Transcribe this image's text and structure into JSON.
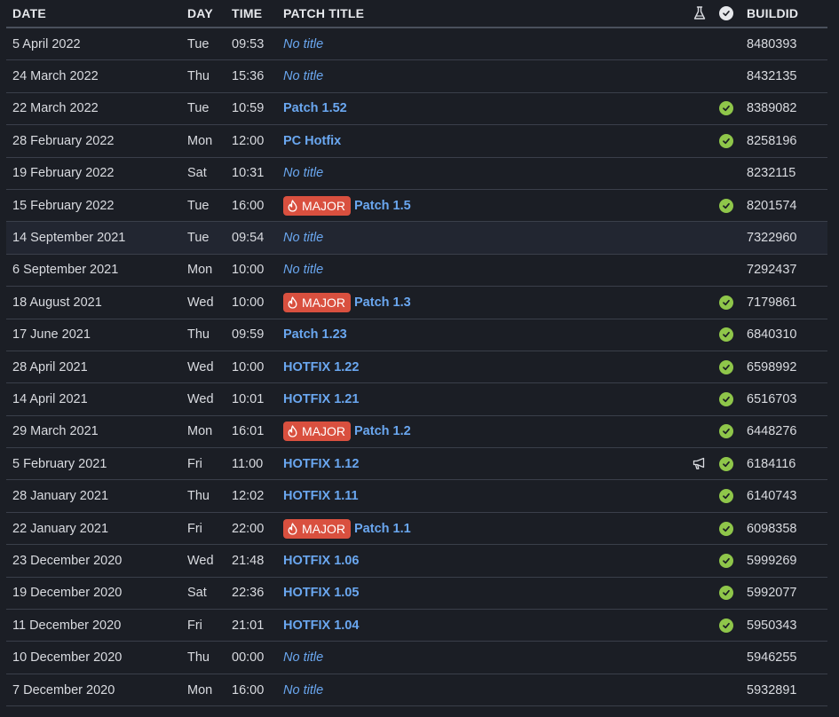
{
  "header": {
    "date": "DATE",
    "day": "DAY",
    "time": "TIME",
    "title": "PATCH TITLE",
    "buildid": "BUILDID"
  },
  "major_label": "MAJOR",
  "colors": {
    "background": "#1b1e25",
    "link": "#6aa7f0",
    "major_badge": "#d9503f",
    "check": "#8fc64a"
  },
  "rows": [
    {
      "date": "5 April 2022",
      "day": "Tue",
      "time": "09:53",
      "title": "No title",
      "notitle": true,
      "major": false,
      "check": false,
      "announce": false,
      "buildid": "8480393"
    },
    {
      "date": "24 March 2022",
      "day": "Thu",
      "time": "15:36",
      "title": "No title",
      "notitle": true,
      "major": false,
      "check": false,
      "announce": false,
      "buildid": "8432135"
    },
    {
      "date": "22 March 2022",
      "day": "Tue",
      "time": "10:59",
      "title": "Patch 1.52",
      "notitle": false,
      "major": false,
      "check": true,
      "announce": false,
      "buildid": "8389082"
    },
    {
      "date": "28 February 2022",
      "day": "Mon",
      "time": "12:00",
      "title": "PC Hotfix",
      "notitle": false,
      "major": false,
      "check": true,
      "announce": false,
      "buildid": "8258196"
    },
    {
      "date": "19 February 2022",
      "day": "Sat",
      "time": "10:31",
      "title": "No title",
      "notitle": true,
      "major": false,
      "check": false,
      "announce": false,
      "buildid": "8232115"
    },
    {
      "date": "15 February 2022",
      "day": "Tue",
      "time": "16:00",
      "title": "Patch 1.5",
      "notitle": false,
      "major": true,
      "check": true,
      "announce": false,
      "buildid": "8201574"
    },
    {
      "date": "14 September 2021",
      "day": "Tue",
      "time": "09:54",
      "title": "No title",
      "notitle": true,
      "major": false,
      "check": false,
      "announce": false,
      "buildid": "7322960",
      "highlight": true
    },
    {
      "date": "6 September 2021",
      "day": "Mon",
      "time": "10:00",
      "title": "No title",
      "notitle": true,
      "major": false,
      "check": false,
      "announce": false,
      "buildid": "7292437"
    },
    {
      "date": "18 August 2021",
      "day": "Wed",
      "time": "10:00",
      "title": "Patch 1.3",
      "notitle": false,
      "major": true,
      "check": true,
      "announce": false,
      "buildid": "7179861"
    },
    {
      "date": "17 June 2021",
      "day": "Thu",
      "time": "09:59",
      "title": "Patch 1.23",
      "notitle": false,
      "major": false,
      "check": true,
      "announce": false,
      "buildid": "6840310"
    },
    {
      "date": "28 April 2021",
      "day": "Wed",
      "time": "10:00",
      "title": "HOTFIX 1.22",
      "notitle": false,
      "major": false,
      "check": true,
      "announce": false,
      "buildid": "6598992"
    },
    {
      "date": "14 April 2021",
      "day": "Wed",
      "time": "10:01",
      "title": "HOTFIX 1.21",
      "notitle": false,
      "major": false,
      "check": true,
      "announce": false,
      "buildid": "6516703"
    },
    {
      "date": "29 March 2021",
      "day": "Mon",
      "time": "16:01",
      "title": "Patch 1.2",
      "notitle": false,
      "major": true,
      "check": true,
      "announce": false,
      "buildid": "6448276"
    },
    {
      "date": "5 February 2021",
      "day": "Fri",
      "time": "11:00",
      "title": "HOTFIX 1.12",
      "notitle": false,
      "major": false,
      "check": true,
      "announce": true,
      "buildid": "6184116"
    },
    {
      "date": "28 January 2021",
      "day": "Thu",
      "time": "12:02",
      "title": "HOTFIX 1.11",
      "notitle": false,
      "major": false,
      "check": true,
      "announce": false,
      "buildid": "6140743"
    },
    {
      "date": "22 January 2021",
      "day": "Fri",
      "time": "22:00",
      "title": "Patch 1.1",
      "notitle": false,
      "major": true,
      "check": true,
      "announce": false,
      "buildid": "6098358"
    },
    {
      "date": "23 December 2020",
      "day": "Wed",
      "time": "21:48",
      "title": "HOTFIX 1.06",
      "notitle": false,
      "major": false,
      "check": true,
      "announce": false,
      "buildid": "5999269"
    },
    {
      "date": "19 December 2020",
      "day": "Sat",
      "time": "22:36",
      "title": "HOTFIX 1.05",
      "notitle": false,
      "major": false,
      "check": true,
      "announce": false,
      "buildid": "5992077"
    },
    {
      "date": "11 December 2020",
      "day": "Fri",
      "time": "21:01",
      "title": "HOTFIX 1.04",
      "notitle": false,
      "major": false,
      "check": true,
      "announce": false,
      "buildid": "5950343"
    },
    {
      "date": "10 December 2020",
      "day": "Thu",
      "time": "00:00",
      "title": "No title",
      "notitle": true,
      "major": false,
      "check": false,
      "announce": false,
      "buildid": "5946255"
    },
    {
      "date": "7 December 2020",
      "day": "Mon",
      "time": "16:00",
      "title": "No title",
      "notitle": true,
      "major": false,
      "check": false,
      "announce": false,
      "buildid": "5932891"
    }
  ]
}
